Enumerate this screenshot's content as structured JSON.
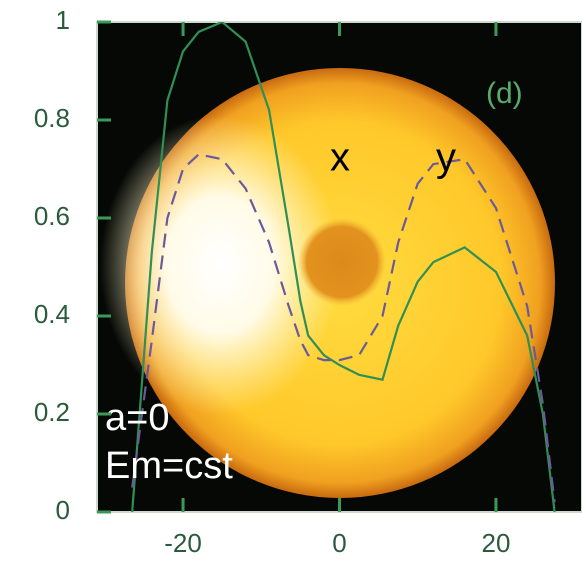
{
  "chart_data": {
    "type": "line",
    "x": [
      -26.5,
      -24,
      -22,
      -20,
      -18,
      -15,
      -12,
      -9,
      -6.5,
      -5,
      -4,
      -2,
      0,
      2.5,
      5.5,
      7.5,
      10,
      12,
      16,
      20,
      24,
      26,
      27.5
    ],
    "series": [
      {
        "color": "#2f8f55",
        "dashed": false,
        "values": [
          0,
          0.53,
          0.84,
          0.94,
          0.98,
          1.0,
          0.96,
          0.82,
          0.58,
          0.43,
          0.36,
          0.32,
          0.3,
          0.28,
          0.27,
          0.38,
          0.47,
          0.51,
          0.54,
          0.49,
          0.36,
          0.2,
          0
        ]
      },
      {
        "color": "#6a5a9a",
        "dashed": true,
        "values": [
          0.05,
          0.35,
          0.6,
          0.7,
          0.73,
          0.72,
          0.66,
          0.55,
          0.42,
          0.35,
          0.32,
          0.31,
          0.31,
          0.32,
          0.4,
          0.55,
          0.67,
          0.71,
          0.72,
          0.62,
          0.42,
          0.22,
          0.02
        ]
      }
    ],
    "xlim": [
      -31,
      31
    ],
    "xticks": [
      -20,
      0,
      20
    ],
    "ylim": [
      0,
      1
    ],
    "yticks": [
      0,
      0.2,
      0.4,
      0.6,
      0.8,
      1
    ],
    "annotations": [
      "x",
      "y",
      "(d)",
      "a=0",
      "Em=cst"
    ]
  }
}
